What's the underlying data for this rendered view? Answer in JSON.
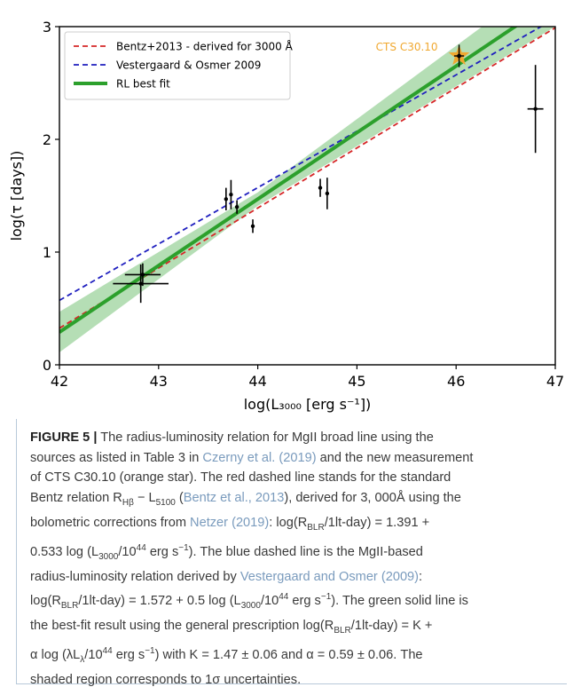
{
  "chart_data": {
    "type": "scatter",
    "xlabel": "log(L₃₀₀₀ [erg s⁻¹])",
    "ylabel": "log(τ [days])",
    "xlim": [
      42,
      47
    ],
    "ylim": [
      0,
      3
    ],
    "xticks": [
      "42",
      "43",
      "44",
      "45",
      "46",
      "47"
    ],
    "yticks": [
      "0",
      "1",
      "2",
      "3"
    ],
    "grid": false,
    "legend_position": "top-left",
    "legend": [
      {
        "label": "Bentz+2013 - derived for 3000 Å",
        "color": "#d62728",
        "style": "dashed"
      },
      {
        "label": "Vestergaard & Osmer 2009",
        "color": "#1f1fbf",
        "style": "dashed"
      },
      {
        "label": "RL best fit",
        "color": "#2ca02c",
        "style": "solid"
      }
    ],
    "lines": [
      {
        "name": "Bentz+2013 - derived for 3000 Å",
        "intercept": 1.391,
        "slope": 0.533,
        "pivot": 44,
        "color": "#d62728",
        "style": "dashed"
      },
      {
        "name": "Vestergaard & Osmer 2009",
        "intercept": 1.572,
        "slope": 0.5,
        "pivot": 44,
        "color": "#1f1fbf",
        "style": "dashed"
      },
      {
        "name": "RL best fit",
        "intercept": 1.47,
        "slope": 0.59,
        "pivot": 44,
        "color": "#2ca02c",
        "style": "solid",
        "band": {
          "intercept_err": 0.06,
          "slope_err": 0.06,
          "color": "#2ca02c"
        }
      }
    ],
    "points": [
      {
        "x": 42.82,
        "y": 0.72,
        "xerr": 0.28,
        "yerr": 0.17
      },
      {
        "x": 42.84,
        "y": 0.8,
        "xerr": 0.18,
        "yerr": 0.1
      },
      {
        "x": 43.68,
        "y": 1.47,
        "xerr": 0,
        "yerr": 0.1
      },
      {
        "x": 43.73,
        "y": 1.51,
        "xerr": 0,
        "yerr": 0.13
      },
      {
        "x": 43.79,
        "y": 1.4,
        "xerr": 0,
        "yerr": 0.06
      },
      {
        "x": 43.95,
        "y": 1.23,
        "xerr": 0,
        "yerr": 0.06
      },
      {
        "x": 44.63,
        "y": 1.57,
        "xerr": 0,
        "yerr": 0.08
      },
      {
        "x": 44.7,
        "y": 1.52,
        "xerr": 0,
        "yerr": 0.14
      },
      {
        "x": 46.8,
        "y": 2.27,
        "xerr": 0.08,
        "yerr": 0.39
      }
    ],
    "highlight": {
      "label": "CTS C30.10",
      "x": 46.03,
      "y": 2.74,
      "xerr": 0.05,
      "yerr": 0.1,
      "color": "#f0a830"
    }
  },
  "caption": {
    "label": "FIGURE 5 |",
    "lines": [
      [
        {
          "t": " The radius-luminosity relation for MgII broad line using the"
        }
      ],
      [
        {
          "t": "sources as listed in Table 3 in "
        },
        {
          "t": "Czerny et al. (2019)",
          "ref": true
        },
        {
          "t": " and the new measurement"
        }
      ],
      [
        {
          "t": "of CTS C30.10 (orange star). The red dashed line stands for the standard"
        }
      ],
      [
        {
          "t": "Bentz relation R"
        },
        {
          "t": "Hβ",
          "sub": true
        },
        {
          "t": " − L"
        },
        {
          "t": "5100",
          "sub": true
        },
        {
          "t": " ("
        },
        {
          "t": "Bentz et al., 2013",
          "ref": true
        },
        {
          "t": "), derived for 3, 000Å using the"
        }
      ],
      [
        {
          "t": "bolometric corrections from "
        },
        {
          "t": "Netzer (2019)",
          "ref": true
        },
        {
          "t": ": log(R"
        },
        {
          "t": "BLR",
          "sub": true
        },
        {
          "t": "/1lt-day) = 1.391 +"
        }
      ],
      [
        {
          "t": "0.533 log (L"
        },
        {
          "t": "3000",
          "sub": true
        },
        {
          "t": "/10"
        },
        {
          "t": "44",
          "sup": true
        },
        {
          "t": " erg s"
        },
        {
          "t": "−1",
          "sup": true
        },
        {
          "t": "). The blue dashed line is the MgII-based"
        }
      ],
      [
        {
          "t": "radius-luminosity relation derived by "
        },
        {
          "t": "Vestergaard and Osmer (2009)",
          "ref": true
        },
        {
          "t": ":"
        }
      ],
      [
        {
          "t": "log(R"
        },
        {
          "t": "BLR",
          "sub": true
        },
        {
          "t": "/1lt-day) = 1.572 + 0.5 log (L"
        },
        {
          "t": "3000",
          "sub": true
        },
        {
          "t": "/10"
        },
        {
          "t": "44",
          "sup": true
        },
        {
          "t": " erg s"
        },
        {
          "t": "−1",
          "sup": true
        },
        {
          "t": "). The green solid line is"
        }
      ],
      [
        {
          "t": "the best-fit result using the general prescription log(R"
        },
        {
          "t": "BLR",
          "sub": true
        },
        {
          "t": "/1lt-day) = K +"
        }
      ],
      [
        {
          "t": "α log (λL"
        },
        {
          "t": "λ",
          "sub": true
        },
        {
          "t": "/10"
        },
        {
          "t": "44",
          "sup": true
        },
        {
          "t": " erg s"
        },
        {
          "t": "−1",
          "sup": true
        },
        {
          "t": ") with K = 1.47 ± 0.06 and α = 0.59 ± 0.06. The"
        }
      ],
      [
        {
          "t": "shaded region corresponds to 1σ uncertainties."
        }
      ]
    ]
  }
}
